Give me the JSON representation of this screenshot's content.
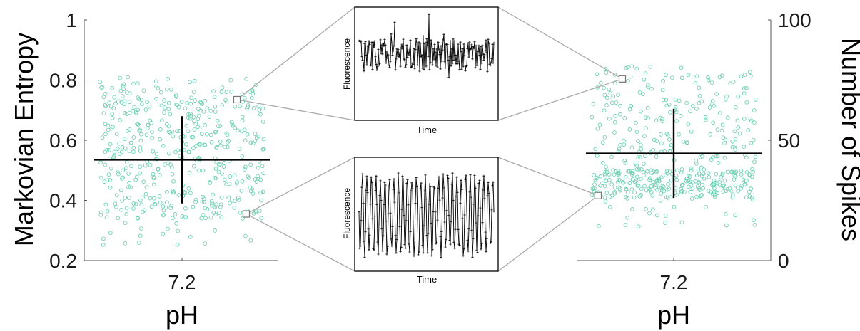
{
  "colors": {
    "scatter": "#6fd0b4",
    "mean_cross": "#000000",
    "axis": "#555555",
    "connector": "#aaaaaa",
    "trace": "#000000"
  },
  "chart_data": [
    {
      "type": "scatter",
      "panel": "left",
      "xlabel": "pH",
      "ylabel": "Markovian Entropy",
      "x_tick_labels": [
        "7.2"
      ],
      "y_ticks": [
        "0.2",
        "0.4",
        "0.6",
        "0.8",
        "1"
      ],
      "ylim": [
        0.2,
        1.0
      ],
      "n_points": 480,
      "y_mean": 0.535,
      "y_sd": 0.145,
      "highlighted_points": [
        {
          "y": 0.735,
          "links_to": "inset_top"
        },
        {
          "y": 0.355,
          "links_to": "inset_bottom"
        }
      ]
    },
    {
      "type": "scatter",
      "panel": "right",
      "xlabel": "pH",
      "ylabel": "Number of Spikes",
      "x_tick_labels": [
        "7.2"
      ],
      "y_ticks": [
        "0",
        "50",
        "100"
      ],
      "ylim": [
        0,
        100
      ],
      "n_points": 480,
      "y_mean": 44.5,
      "y_sd": 18.5,
      "highlighted_points": [
        {
          "y": 75.5,
          "links_to": "inset_top"
        },
        {
          "y": 27.0,
          "links_to": "inset_bottom"
        }
      ]
    },
    {
      "type": "line",
      "panel": "inset_top",
      "xlabel": "Time",
      "ylabel": "Fluorescence",
      "description_of_signal": "irregular fluctuations"
    },
    {
      "type": "line",
      "panel": "inset_bottom",
      "xlabel": "Time",
      "ylabel": "Fluorescence",
      "description_of_signal": "regular periodic oscillation"
    }
  ]
}
